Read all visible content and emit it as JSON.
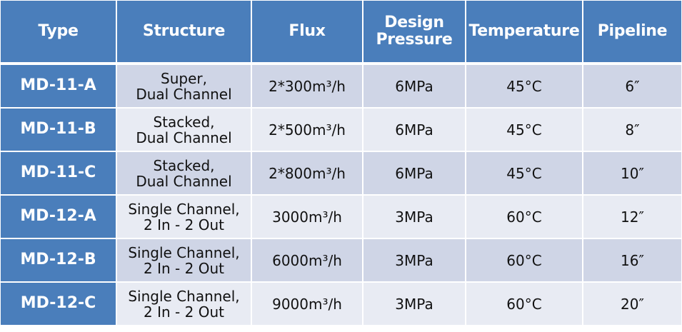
{
  "table": {
    "header": [
      "Type",
      "Structure",
      "Flux",
      "Design\nPressure",
      "Temperature",
      "Pipeline"
    ],
    "rows": [
      [
        "MD-11-A",
        "Super,\nDual Channel",
        "2*300m³/h",
        "6MPa",
        "45°C",
        "6″"
      ],
      [
        "MD-11-B",
        "Stacked,\nDual Channel",
        "2*500m³/h",
        "6MPa",
        "45°C",
        "8″"
      ],
      [
        "MD-11-C",
        "Stacked,\nDual Channel",
        "2*800m³/h",
        "6MPa",
        "45°C",
        "10″"
      ],
      [
        "MD-12-A",
        "Single Channel,\n2 In - 2 Out",
        "3000m³/h",
        "3MPa",
        "60°C",
        "12″"
      ],
      [
        "MD-12-B",
        "Single Channel,\n2 In - 2 Out",
        "6000m³/h",
        "3MPa",
        "60°C",
        "16″"
      ],
      [
        "MD-12-C",
        "Single Channel,\n2 In - 2 Out",
        "9000m³/h",
        "3MPa",
        "60°C",
        "20″"
      ]
    ]
  }
}
